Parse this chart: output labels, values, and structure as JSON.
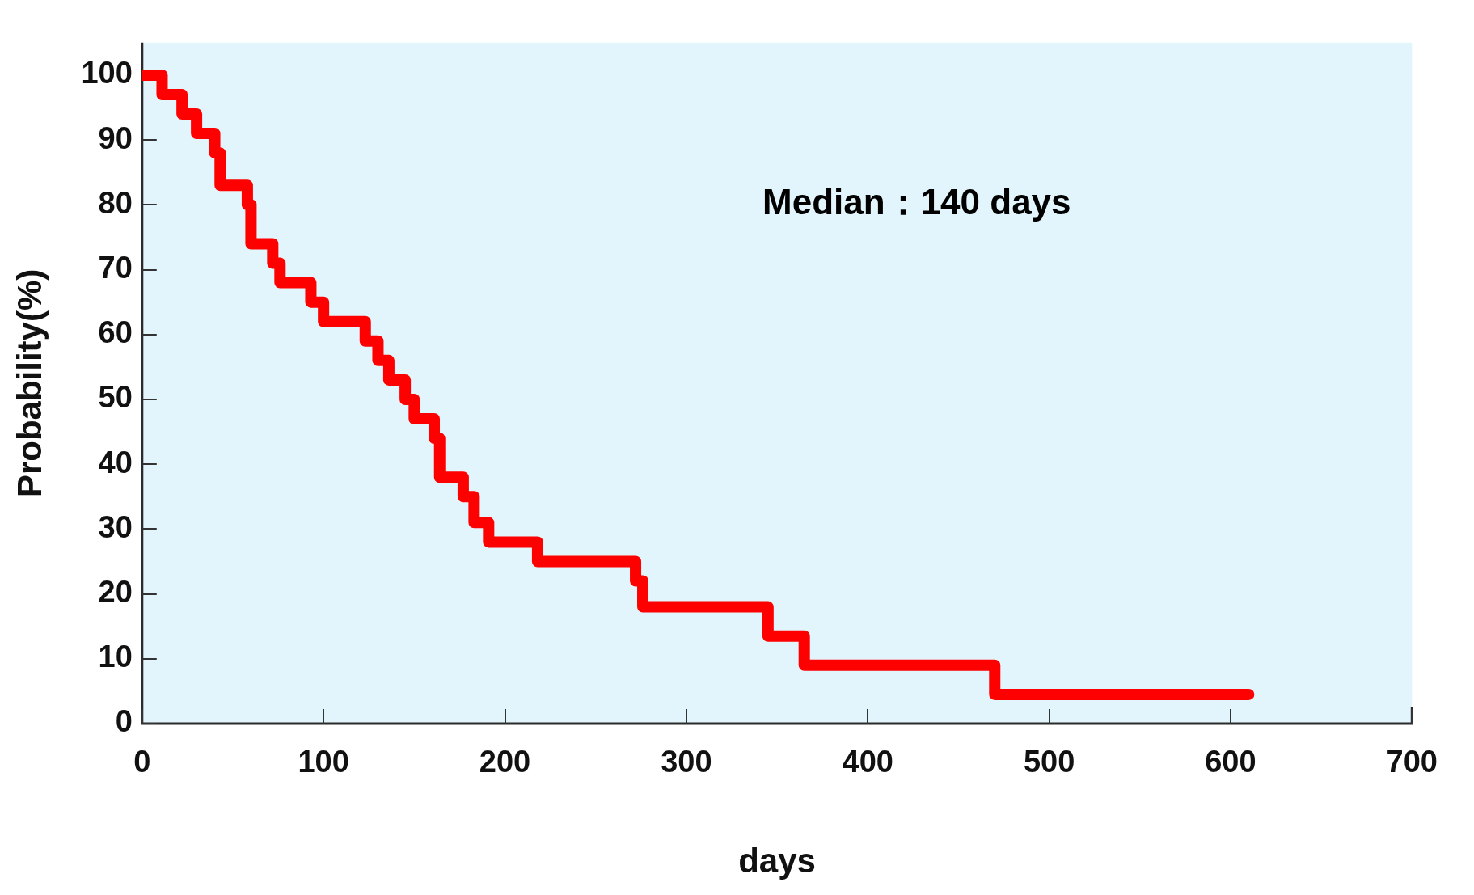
{
  "chart_data": {
    "type": "step",
    "xlabel": "days",
    "ylabel": "Probability(%)",
    "x": [
      0,
      11,
      22,
      30,
      40,
      43,
      58,
      60,
      72,
      76,
      93,
      100,
      123,
      130,
      136,
      145,
      150,
      161,
      164,
      177,
      183,
      191,
      218,
      272,
      276,
      345,
      365,
      470,
      610
    ],
    "series": [
      {
        "color": "#ff0000",
        "values": [
          100,
          97,
          94,
          91,
          88,
          83,
          80,
          74,
          71,
          68,
          65,
          62,
          59,
          56,
          53,
          50,
          47,
          44,
          38,
          35,
          31,
          28,
          25,
          22,
          18,
          13.5,
          9,
          4.5,
          4.5
        ]
      }
    ],
    "xlim": [
      0,
      700
    ],
    "xticks": [
      0,
      100,
      200,
      300,
      400,
      500,
      600,
      700
    ],
    "ylim": [
      0,
      105
    ],
    "yticks": [
      0,
      10,
      20,
      30,
      40,
      50,
      60,
      70,
      80,
      90,
      100
    ],
    "grid": false,
    "legend": false,
    "annotations": [
      "Median：140 days"
    ]
  }
}
